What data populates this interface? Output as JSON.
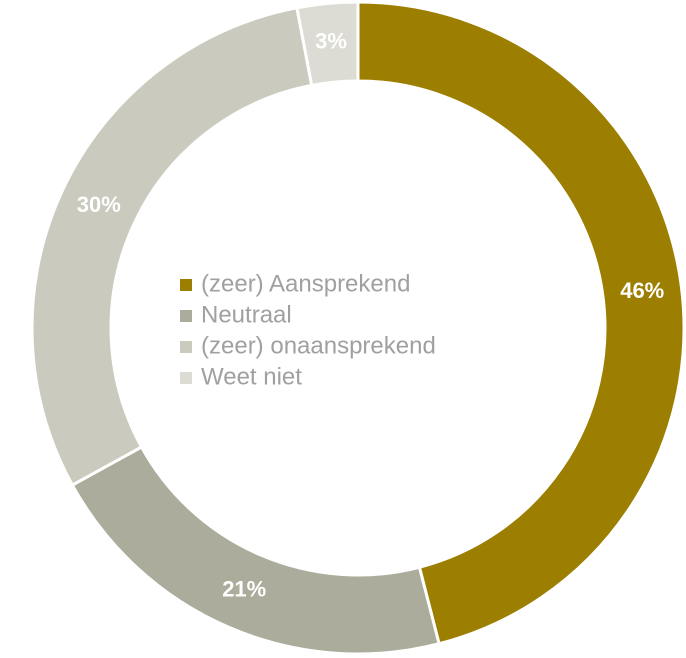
{
  "chart_data": {
    "type": "donut",
    "categories": [
      "(zeer) Aansprekend",
      "Neutraal",
      "(zeer) onaansprekend",
      "Weet niet"
    ],
    "values": [
      46,
      21,
      30,
      3
    ],
    "value_labels": [
      "46%",
      "21%",
      "30%",
      "3%"
    ],
    "colors": [
      "#9c7e00",
      "#acac9c",
      "#cacabe",
      "#dcdcd4"
    ],
    "legend": "center"
  }
}
